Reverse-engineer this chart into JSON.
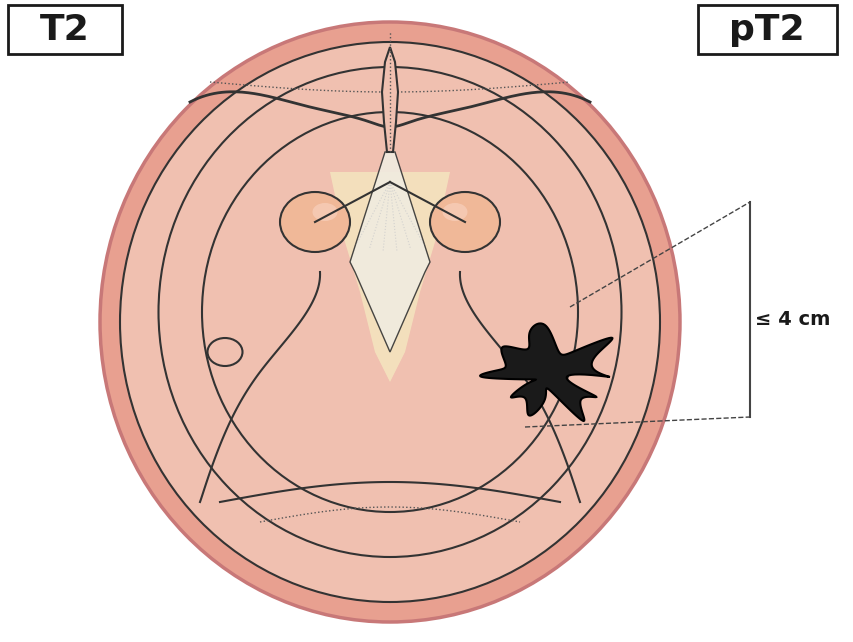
{
  "title_left": "T2",
  "title_right": "pT2",
  "label_measurement": "≤ 4 cm",
  "bg_color": "#ffffff",
  "outer_ellipse_color": "#c87878",
  "outer_ellipse_fill": "#e8a090",
  "inner_fill_light": "#f0c0b0",
  "inner_fill_lighter": "#f5d5c8",
  "vocal_cord_fill": "#f5e8c0",
  "vocal_cord_light": "#faf0e0",
  "tumor_color": "#1a1a1a",
  "line_color": "#333333",
  "box_color": "#1a1a1a",
  "text_color": "#1a1a1a",
  "dashed_color": "#555555"
}
